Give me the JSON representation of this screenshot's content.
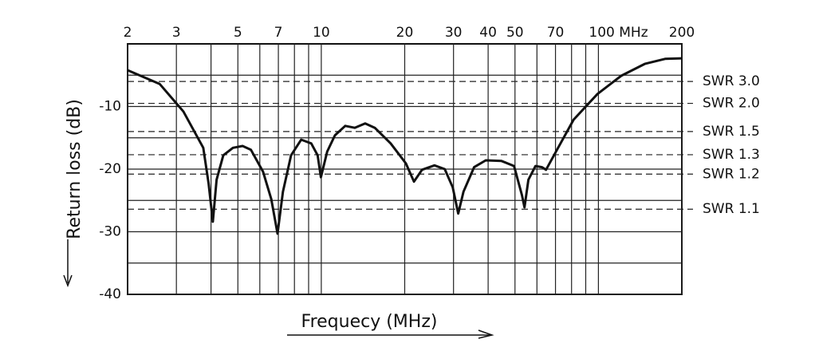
{
  "chart_data": {
    "type": "line",
    "x_label": "Frequecy (MHz)",
    "y_label": "Return loss (dB)",
    "xscale": "log",
    "xlim": [
      2,
      200
    ],
    "xticks": [
      2,
      3,
      5,
      7,
      10,
      20,
      30,
      40,
      50,
      70,
      {
        "value": 100,
        "label": "100 MHz"
      },
      200
    ],
    "xminor": [
      4,
      6,
      8,
      9,
      60,
      80,
      90
    ],
    "ylim": [
      -40,
      0
    ],
    "yticks": [
      -40,
      -30,
      -20,
      -10
    ],
    "yminor": [
      -35,
      -25,
      -15,
      -5
    ],
    "grid": true,
    "reference_lines": [
      {
        "value": -6.0,
        "label": "SWR 3.0"
      },
      {
        "value": -9.5,
        "label": "SWR 2.0"
      },
      {
        "value": -14.0,
        "label": "SWR 1.5"
      },
      {
        "value": -17.7,
        "label": "SWR 1.3"
      },
      {
        "value": -20.8,
        "label": "SWR 1.2"
      },
      {
        "value": -26.4,
        "label": "SWR 1.1"
      }
    ],
    "series": [
      {
        "color": "#111111",
        "x": [
          2,
          2.61,
          3.18,
          3.75,
          3.92,
          4.06,
          4.19,
          4.43,
          4.8,
          5.2,
          5.57,
          6.16,
          6.6,
          6.95,
          7.27,
          7.78,
          8.46,
          9.2,
          9.7,
          9.97,
          10.5,
          11.2,
          12.2,
          13.2,
          14.4,
          15.6,
          17.8,
          20.2,
          21.6,
          23.1,
          25.6,
          27.9,
          29.8,
          31.2,
          32.6,
          35.6,
          39.2,
          44.7,
          49.6,
          53,
          54.1,
          55.9,
          59.3,
          62.6,
          64.7,
          71.5,
          81.4,
          99.2,
          120.9,
          147,
          174,
          200
        ],
        "values": [
          -4.2,
          -6.4,
          -10.8,
          -16.6,
          -22.3,
          -28.4,
          -21.7,
          -17.8,
          -16.6,
          -16.3,
          -16.9,
          -20.4,
          -24.8,
          -30.3,
          -23.6,
          -17.8,
          -15.3,
          -15.9,
          -17.8,
          -21.3,
          -17.2,
          -14.6,
          -13.1,
          -13.4,
          -12.7,
          -13.4,
          -15.9,
          -19.1,
          -22.0,
          -20.1,
          -19.4,
          -20.0,
          -22.9,
          -27.1,
          -23.6,
          -19.7,
          -18.6,
          -18.7,
          -19.5,
          -24.2,
          -26.1,
          -21.7,
          -19.5,
          -19.7,
          -20.1,
          -16.6,
          -12.1,
          -8.0,
          -5.1,
          -3.2,
          -2.4,
          -2.3
        ]
      }
    ]
  }
}
